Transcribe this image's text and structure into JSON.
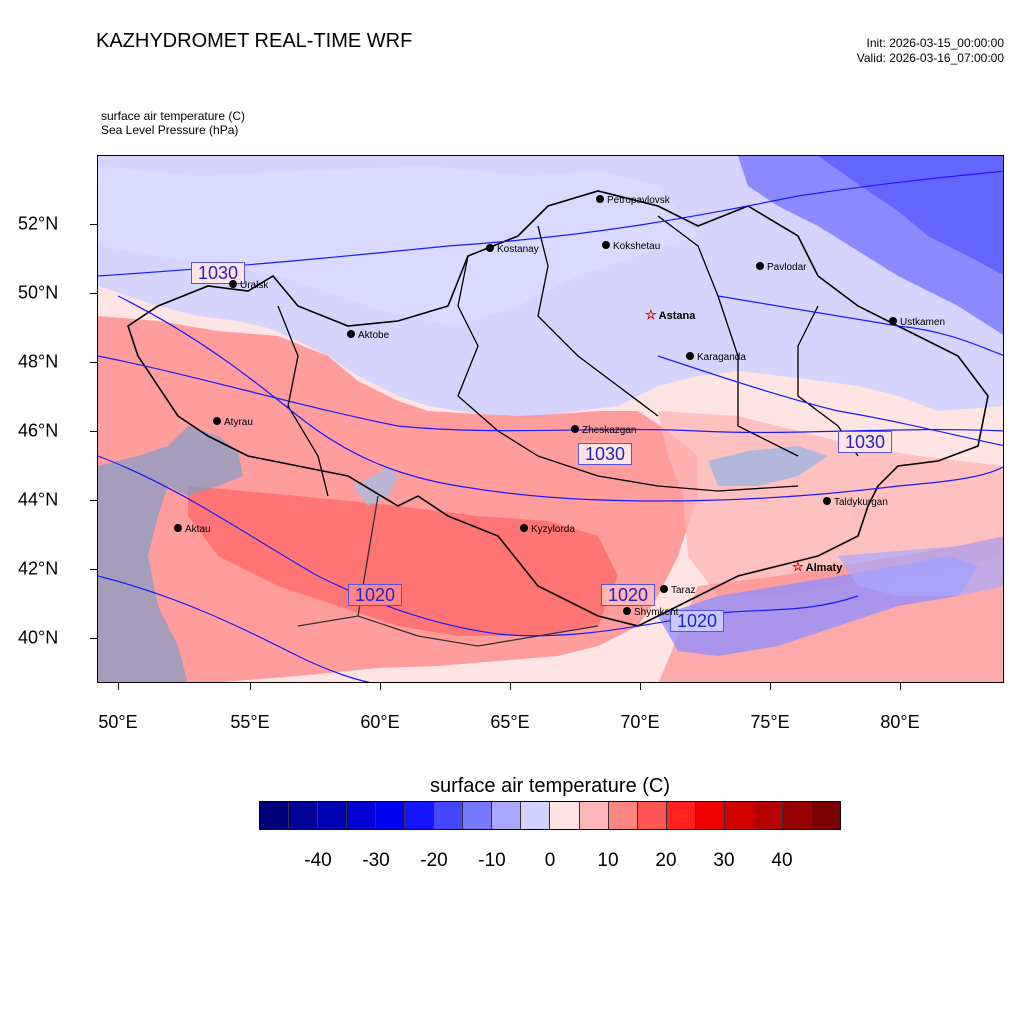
{
  "header": {
    "title": "KAZHYDROMET REAL-TIME WRF",
    "init": "Init: 2026-03-15_00:00:00",
    "valid": "Valid: 2026-03-16_07:00:00"
  },
  "fields": {
    "primary": "surface air temperature   (C)",
    "secondary": "Sea Level Pressure   (hPa)"
  },
  "axes": {
    "lat_labels": [
      "52°N",
      "50°N",
      "48°N",
      "46°N",
      "44°N",
      "42°N",
      "40°N"
    ],
    "lon_labels": [
      "50°E",
      "55°E",
      "60°E",
      "65°E",
      "70°E",
      "75°E",
      "80°E"
    ]
  },
  "cities": [
    {
      "name": "Petropavlovsk",
      "capital": false
    },
    {
      "name": "Kostanay",
      "capital": false
    },
    {
      "name": "Kokshetau",
      "capital": false
    },
    {
      "name": "Pavlodar",
      "capital": false
    },
    {
      "name": "Uralsk",
      "capital": false
    },
    {
      "name": "Astana",
      "capital": true
    },
    {
      "name": "Ustkamen",
      "capital": false
    },
    {
      "name": "Aktobe",
      "capital": false
    },
    {
      "name": "Karaganda",
      "capital": false
    },
    {
      "name": "Atyrau",
      "capital": false
    },
    {
      "name": "Zheskazgan",
      "capital": false
    },
    {
      "name": "Taldykurgan",
      "capital": false
    },
    {
      "name": "Kyzylorda",
      "capital": false
    },
    {
      "name": "Aktau",
      "capital": false
    },
    {
      "name": "Almaty",
      "capital": true
    },
    {
      "name": "Taraz",
      "capital": false
    },
    {
      "name": "Shymkent",
      "capital": false
    }
  ],
  "isobar_labels": [
    "1030",
    "1030",
    "1030",
    "1020",
    "1020",
    "1020"
  ],
  "colorbar": {
    "title": "surface air temperature  (C)",
    "ticks": [
      "-40",
      "-30",
      "-20",
      "-10",
      "0",
      "10",
      "20",
      "30",
      "40"
    ],
    "colors": [
      "#00007a",
      "#000096",
      "#0000b4",
      "#0000d2",
      "#0000f0",
      "#1414ff",
      "#4646ff",
      "#7878ff",
      "#a8a8ff",
      "#d2d2ff",
      "#ffe4e4",
      "#ffb6b6",
      "#ff8484",
      "#ff5454",
      "#ff2020",
      "#f00000",
      "#d20000",
      "#b40000",
      "#960000",
      "#780000"
    ]
  }
}
